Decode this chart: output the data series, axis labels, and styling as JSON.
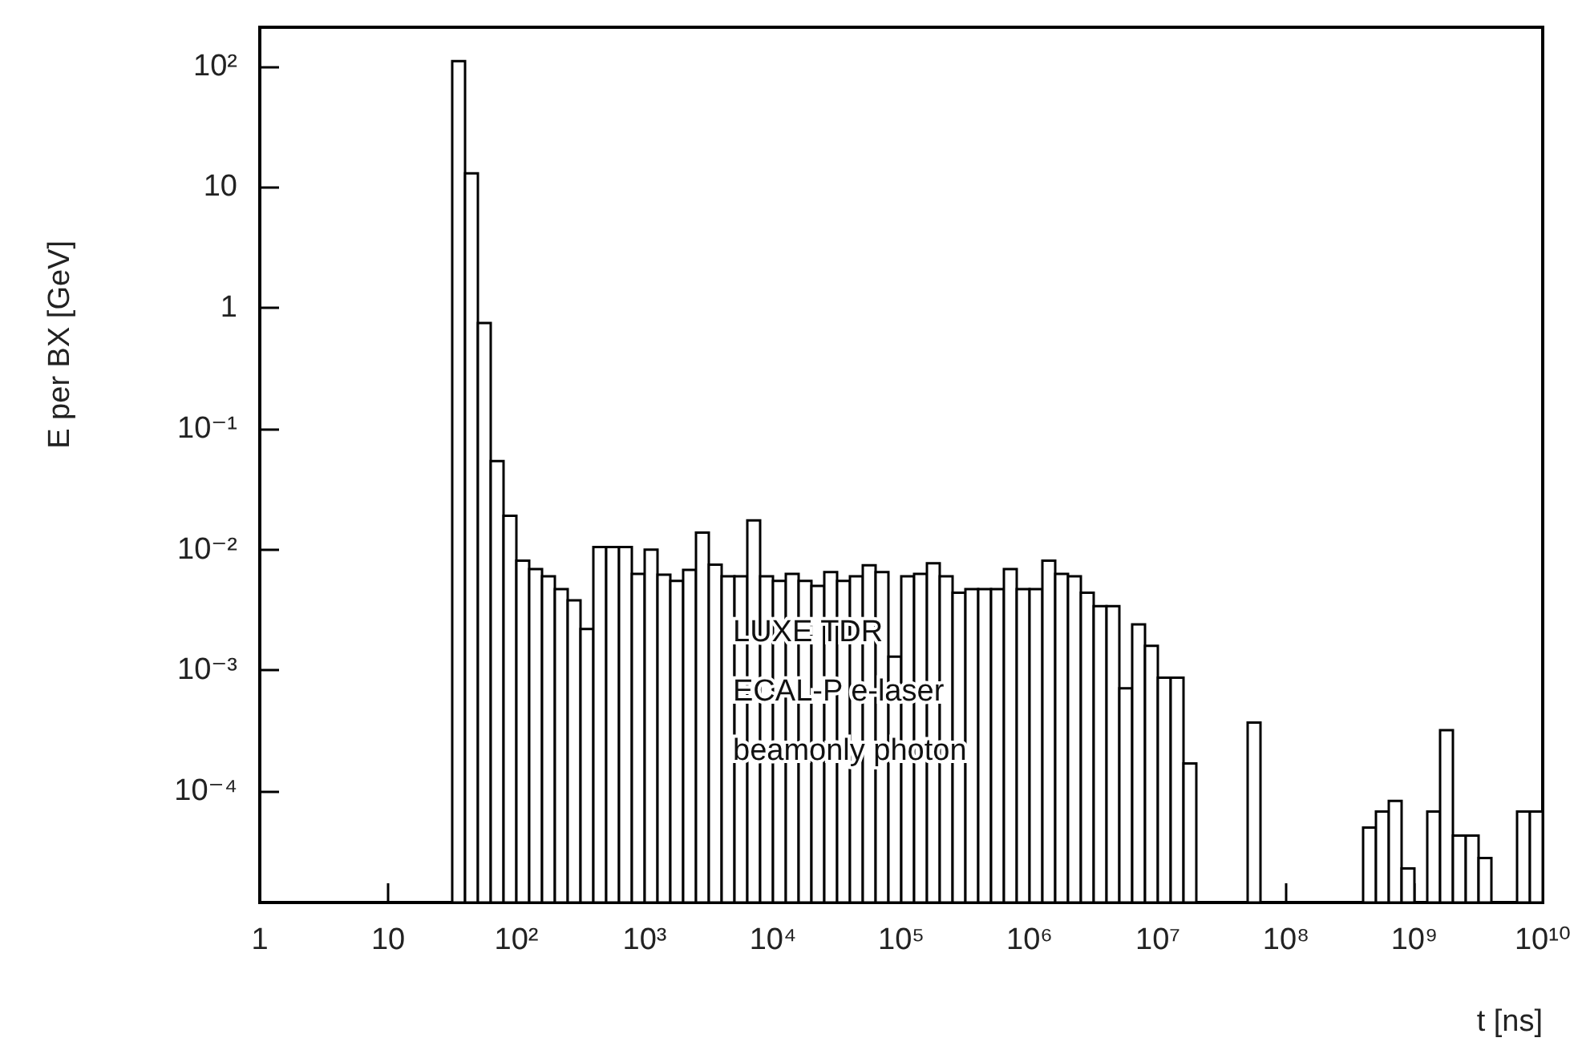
{
  "chart_data": {
    "type": "histogram",
    "xlabel": "t [ns]",
    "ylabel": "E per BX [GeV]",
    "log": "xy",
    "color": "#000000",
    "xlim": [
      1,
      10000000000
    ],
    "ylim": [
      1.2e-05,
      210
    ],
    "xticks": [
      1,
      10,
      {
        "value": 100,
        "label": "10²"
      },
      {
        "value": 1000,
        "label": "10³"
      },
      {
        "value": 10000,
        "label": "10⁴"
      },
      {
        "value": 100000,
        "label": "10⁵"
      },
      {
        "value": 1000000,
        "label": "10⁶"
      },
      {
        "value": 10000000,
        "label": "10⁷"
      },
      {
        "value": 100000000,
        "label": "10⁸"
      },
      {
        "value": 1000000000,
        "label": "10⁹"
      },
      {
        "value": 10000000000,
        "label": "10¹⁰"
      }
    ],
    "yticks": [
      {
        "value": 0.0001,
        "label": "10⁻⁴"
      },
      {
        "value": 0.001,
        "label": "10⁻³"
      },
      {
        "value": 0.01,
        "label": "10⁻²"
      },
      {
        "value": 0.1,
        "label": "10⁻¹"
      },
      1,
      10,
      {
        "value": 100,
        "label": "10²"
      }
    ],
    "grid": false,
    "annotations": [
      "LUXE TDR",
      "ECAL-P e-laser",
      "beamonly photon"
    ],
    "bins": [
      31.62,
      39.81,
      50.12,
      63.1,
      79.43,
      100,
      125.9,
      158.5,
      199.5,
      251.2,
      316.2,
      398.1,
      501.2,
      631,
      794.3,
      1000,
      1259,
      1585,
      1995,
      2512,
      3162,
      3981,
      5012,
      6310,
      7943,
      10000,
      12590,
      15850,
      19950,
      25120,
      31620,
      39810,
      50120,
      63100,
      79430,
      100000,
      125900,
      158500,
      199500,
      251200,
      316200,
      398100,
      501200,
      631000,
      794300,
      1000000,
      1259000,
      1585000,
      1995000,
      2512000,
      3162000,
      3981000,
      5012000,
      6310000,
      7943000,
      10000000,
      12590000,
      15850000,
      19950000,
      25120000,
      31620000,
      39810000,
      50120000,
      63100000,
      79430000,
      100000000,
      125900000,
      158500000,
      199500000,
      251200000,
      316200000,
      398100000,
      501200000,
      631000000,
      794300000,
      1000000000,
      1259000000,
      1585000000,
      1995000000,
      2512000000,
      3162000000,
      3981000000,
      5012000000,
      6310000000,
      7943000000,
      10000000000
    ],
    "values": [
      110,
      13,
      0.75,
      0.054,
      0.019,
      0.0081,
      0.0069,
      0.006,
      0.0047,
      0.0038,
      0.0022,
      0.0105,
      0.0105,
      0.0105,
      0.0063,
      0.01,
      0.0062,
      0.0055,
      0.0068,
      0.0138,
      0.0075,
      0.006,
      0.006,
      0.0174,
      0.006,
      0.0055,
      0.0063,
      0.0055,
      0.005,
      0.0065,
      0.0055,
      0.006,
      0.0074,
      0.0065,
      0.0013,
      0.006,
      0.0063,
      0.0077,
      0.006,
      0.0044,
      0.0047,
      0.0047,
      0.0047,
      0.0069,
      0.0047,
      0.0047,
      0.0081,
      0.0063,
      0.006,
      0.0044,
      0.0034,
      0.0034,
      0.00071,
      0.0024,
      0.0016,
      0.00087,
      0.00087,
      0.00017,
      null,
      null,
      null,
      null,
      0.00037,
      null,
      null,
      null,
      null,
      null,
      null,
      null,
      null,
      5e-05,
      6.8e-05,
      8.3e-05,
      2.3e-05,
      null,
      6.8e-05,
      0.00032,
      4.3e-05,
      4.3e-05,
      2.8e-05,
      null,
      null,
      6.8e-05,
      6.8e-05
    ]
  }
}
